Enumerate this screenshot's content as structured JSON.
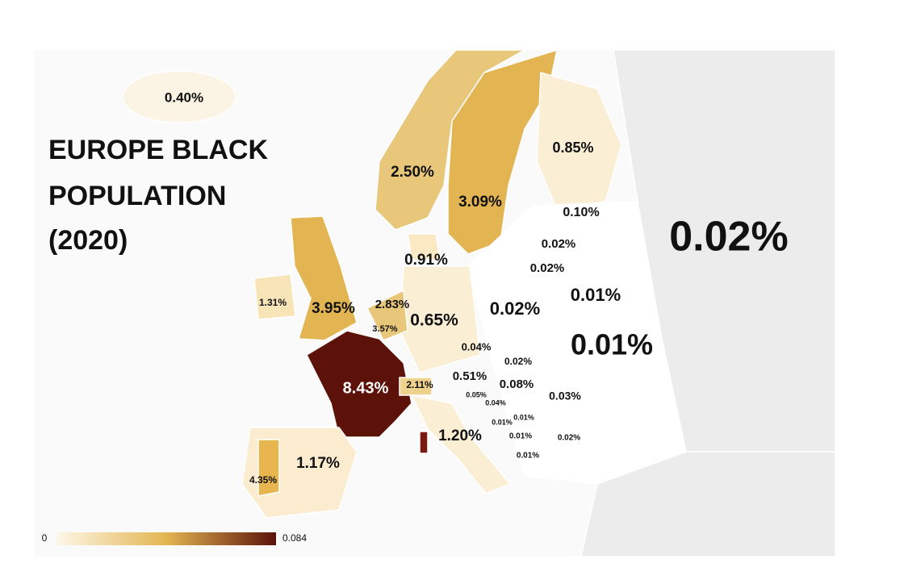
{
  "title": [
    "EUROPE BLACK",
    "POPULATION",
    "(2020)"
  ],
  "labels": [
    "0.40%",
    "0.85%",
    "2.50%",
    "3.09%",
    "0.10%",
    "0.02%",
    "0.02%",
    "0.91%",
    "0.02%",
    "1.31%",
    "3.95%",
    "2.83%",
    "0.02%",
    "0.01%",
    "3.57%",
    "0.65%",
    "0.04%",
    "0.02%",
    "0.01%",
    "0.51%",
    "8.43%",
    "2.11%",
    "0.08%",
    "0.05%",
    "0.04%",
    "0.03%",
    "0.01%",
    "0.01%",
    "1.20%",
    "0.01%",
    "0.02%",
    "0.01%",
    "1.17%",
    "4.35%"
  ],
  "legend": {
    "min": "0",
    "max": "0.084"
  }
}
